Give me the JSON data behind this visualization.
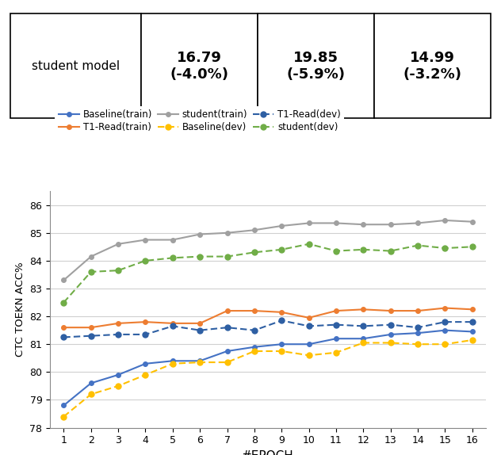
{
  "table": {
    "row_label": "student model",
    "values": [
      "16.79\n(-4.0%)",
      "19.85\n(-5.9%)",
      "14.99\n(-3.2%)"
    ]
  },
  "epochs": [
    1,
    2,
    3,
    4,
    5,
    6,
    7,
    8,
    9,
    10,
    11,
    12,
    13,
    14,
    15,
    16
  ],
  "baseline_train": [
    78.8,
    79.6,
    79.9,
    80.3,
    80.4,
    80.4,
    80.75,
    80.9,
    81.0,
    81.0,
    81.2,
    81.2,
    81.35,
    81.4,
    81.5,
    81.45
  ],
  "baseline_dev": [
    78.4,
    79.2,
    79.5,
    79.9,
    80.3,
    80.35,
    80.35,
    80.75,
    80.75,
    80.6,
    80.7,
    81.05,
    81.05,
    81.0,
    81.0,
    81.15
  ],
  "t1read_train": [
    81.6,
    81.6,
    81.75,
    81.8,
    81.75,
    81.75,
    82.2,
    82.2,
    82.15,
    81.95,
    82.2,
    82.25,
    82.2,
    82.2,
    82.3,
    82.25
  ],
  "t1read_dev": [
    81.25,
    81.3,
    81.35,
    81.35,
    81.65,
    81.5,
    81.6,
    81.5,
    81.85,
    81.65,
    81.7,
    81.65,
    81.7,
    81.6,
    81.8,
    81.8
  ],
  "student_train": [
    83.3,
    84.15,
    84.6,
    84.75,
    84.75,
    84.95,
    85.0,
    85.1,
    85.25,
    85.35,
    85.35,
    85.3,
    85.3,
    85.35,
    85.45,
    85.4
  ],
  "student_dev": [
    82.5,
    83.6,
    83.65,
    84.0,
    84.1,
    84.15,
    84.15,
    84.3,
    84.4,
    84.6,
    84.35,
    84.4,
    84.35,
    84.55,
    84.45,
    84.5
  ],
  "colors": {
    "baseline_train": "#4472C4",
    "baseline_dev": "#FFC000",
    "t1read_train": "#ED7D31",
    "t1read_dev": "#2E5FA3",
    "student_train": "#A0A0A0",
    "student_dev": "#70AD47"
  },
  "ylabel": "CTC TOEKN ACC%",
  "xlabel": "#EPOCH",
  "ylim": [
    78,
    86.5
  ],
  "yticks": [
    78,
    79,
    80,
    81,
    82,
    83,
    84,
    85,
    86
  ]
}
